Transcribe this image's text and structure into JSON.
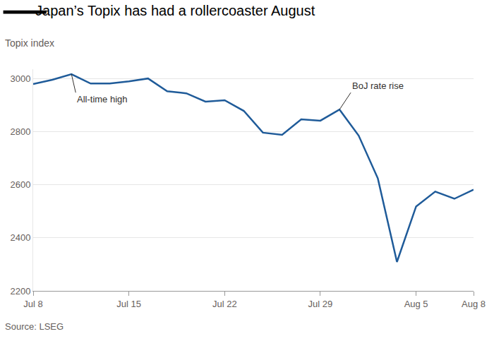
{
  "chart_data": {
    "type": "line",
    "title": "Japan’s Topix has had a rollercoaster August",
    "subtitle": "Topix index",
    "source": "Source: LSEG",
    "categories": [
      "Jul 8",
      null,
      null,
      null,
      null,
      "Jul 15",
      null,
      null,
      null,
      null,
      "Jul 22",
      null,
      null,
      null,
      null,
      "Jul 29",
      null,
      null,
      null,
      null,
      "Aug 5",
      null,
      null,
      "Aug 8"
    ],
    "values": [
      2979,
      2995,
      3016,
      2981,
      2981,
      2989,
      3000,
      2952,
      2944,
      2913,
      2918,
      2878,
      2796,
      2788,
      2846,
      2841,
      2883,
      2785,
      2624,
      2309,
      2518,
      2574,
      2547,
      2581
    ],
    "color": "#1f5b99",
    "ylim": [
      2200,
      3035
    ],
    "yticks": [
      2200,
      2400,
      2600,
      2800,
      3000
    ],
    "grid": true,
    "annotations": [
      {
        "text": "All-time high",
        "index": 2
      },
      {
        "text": "BoJ rate rise",
        "index": 16
      }
    ]
  }
}
